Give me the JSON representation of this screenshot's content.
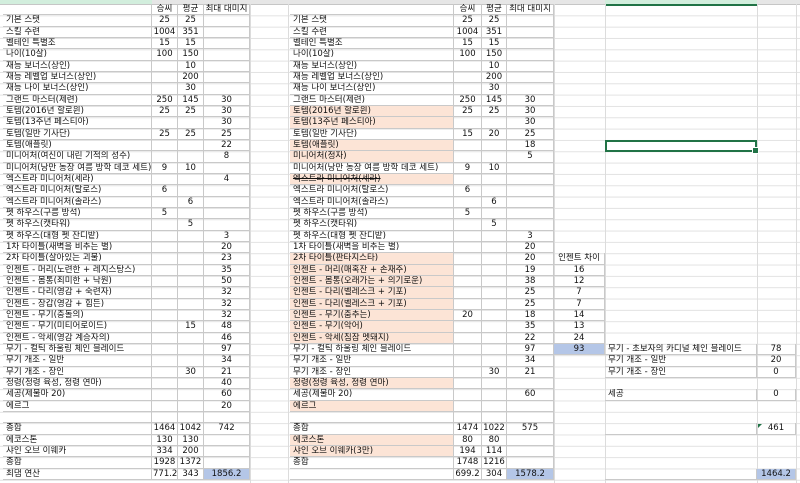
{
  "headers": {
    "win": "승씨",
    "avg": "평균",
    "max": "최대 대미지",
    "enchant_diff": "인젠트 차이"
  },
  "left_table": [
    {
      "label": "기본 스탯",
      "a": "25",
      "b": "25",
      "c": ""
    },
    {
      "label": "스킬 수련",
      "a": "1004",
      "b": "351",
      "c": ""
    },
    {
      "label": "벨테인 특별조",
      "a": "15",
      "b": "15",
      "c": ""
    },
    {
      "label": "나이(10살)",
      "a": "100",
      "b": "150",
      "c": ""
    },
    {
      "label": "재능 보너스(상인)",
      "a": "",
      "b": "10",
      "c": ""
    },
    {
      "label": "재능 레벨업 보너스(상인)",
      "a": "",
      "b": "200",
      "c": ""
    },
    {
      "label": "재능 나이 보너스(상인)",
      "a": "",
      "b": "30",
      "c": ""
    },
    {
      "label": "그랜드 마스터(제련)",
      "a": "250",
      "b": "145",
      "c": "30"
    },
    {
      "label": "토템(2016년 할로윈)",
      "a": "25",
      "b": "25",
      "c": "30"
    },
    {
      "label": "토템(13주년 페스티아)",
      "a": "",
      "b": "",
      "c": "30"
    },
    {
      "label": "토템(일반 기사단)",
      "a": "25",
      "b": "25",
      "c": "25"
    },
    {
      "label": "토템(애플릿)",
      "a": "",
      "b": "",
      "c": "22"
    },
    {
      "label": "미니어처(여신이 내린 기적의 성수)",
      "a": "",
      "b": "",
      "c": "8"
    },
    {
      "label": "미니어처(낭만 농장 여름 방학 데코 세트)",
      "a": "9",
      "b": "10",
      "c": ""
    },
    {
      "label": "엑스트라 미니어처(세라)",
      "a": "",
      "b": "",
      "c": "4"
    },
    {
      "label": "엑스트라 미니어처(탈로스)",
      "a": "6",
      "b": "",
      "c": ""
    },
    {
      "label": "엑스트라 미니어처(솔라스)",
      "a": "",
      "b": "6",
      "c": ""
    },
    {
      "label": "펫 하우스(구름 방석)",
      "a": "5",
      "b": "",
      "c": ""
    },
    {
      "label": "펫 하우스(캣타워)",
      "a": "",
      "b": "5",
      "c": ""
    },
    {
      "label": "펫 하우스(대형 펫 잔디밭)",
      "a": "",
      "b": "",
      "c": "3"
    },
    {
      "label": "1차 타이틀(새벽을 비추는 별)",
      "a": "",
      "b": "",
      "c": "20"
    },
    {
      "label": "2차 타이틀(살아있는 괴물)",
      "a": "",
      "b": "",
      "c": "23"
    },
    {
      "label": "인젠트 - 머리(노련한 + 레지스탕스)",
      "a": "",
      "b": "",
      "c": "35"
    },
    {
      "label": "인젠트 - 몸통(죄미한 + 낙원)",
      "a": "",
      "b": "",
      "c": "50"
    },
    {
      "label": "인젠트 - 다리(영감 + 숙련자)",
      "a": "",
      "b": "",
      "c": "32"
    },
    {
      "label": "인젠트 - 장갑(영감 + 힘든)",
      "a": "",
      "b": "",
      "c": "32"
    },
    {
      "label": "인젠트 - 무기(충돌의)",
      "a": "",
      "b": "",
      "c": "32"
    },
    {
      "label": "인젠트 - 무기(미티어로이드)",
      "a": "",
      "b": "15",
      "c": "48"
    },
    {
      "label": "인젠트 - 악세(영감 계승자의)",
      "a": "",
      "b": "",
      "c": "46"
    },
    {
      "label": "무기 - 컬틱 하울링 체인 블레이드",
      "a": "",
      "b": "",
      "c": "97"
    },
    {
      "label": "무기 개조 - 일반",
      "a": "",
      "b": "",
      "c": "34"
    },
    {
      "label": "무기 개조 - 장인",
      "a": "",
      "b": "30",
      "c": "21"
    },
    {
      "label": "정령(정령 육성, 정령 연마)",
      "a": "",
      "b": "",
      "c": "40"
    },
    {
      "label": "세공(제물마 20)",
      "a": "",
      "b": "",
      "c": "60"
    },
    {
      "label": "에르그",
      "a": "",
      "b": "",
      "c": "20"
    },
    {
      "label": "",
      "a": "",
      "b": "",
      "c": ""
    },
    {
      "label": "종합",
      "a": "1464",
      "b": "1042",
      "c": "742"
    },
    {
      "label": "에코스톤",
      "a": "130",
      "b": "130",
      "c": ""
    },
    {
      "label": "샤인 오브 이웨카",
      "a": "334",
      "b": "200",
      "c": ""
    },
    {
      "label": "종합",
      "a": "1928",
      "b": "1372",
      "c": ""
    },
    {
      "label": "최댐 연산",
      "a": "771.2",
      "b": "343",
      "c": "1856.2",
      "c_highlight": true
    }
  ],
  "right_table": [
    {
      "label": "기본 스탯",
      "a": "25",
      "b": "25",
      "c": "",
      "d": ""
    },
    {
      "label": "스킬 수련",
      "a": "1004",
      "b": "351",
      "c": "",
      "d": ""
    },
    {
      "label": "벨테인 특별조",
      "a": "15",
      "b": "15",
      "c": "",
      "d": ""
    },
    {
      "label": "나이(10살)",
      "a": "100",
      "b": "150",
      "c": "",
      "d": ""
    },
    {
      "label": "재능 보너스(상인)",
      "a": "",
      "b": "10",
      "c": "",
      "d": ""
    },
    {
      "label": "재능 레벨업 보너스(상인)",
      "a": "",
      "b": "200",
      "c": "",
      "d": ""
    },
    {
      "label": "재능 나이 보너스(상인)",
      "a": "",
      "b": "30",
      "c": "",
      "d": ""
    },
    {
      "label": "그랜드 마스터(제련)",
      "a": "250",
      "b": "145",
      "c": "30",
      "d": ""
    },
    {
      "label": "토템(2016년 할로윈)",
      "a": "25",
      "b": "25",
      "c": "30",
      "d": "",
      "highlight": true
    },
    {
      "label": "토템(13주년 페스티아)",
      "a": "",
      "b": "",
      "c": "30",
      "d": "",
      "highlight": true
    },
    {
      "label": "토템(일반 기사단)",
      "a": "15",
      "b": "20",
      "c": "25",
      "d": ""
    },
    {
      "label": "토템(애플릿)",
      "a": "",
      "b": "",
      "c": "18",
      "d": "",
      "highlight": true
    },
    {
      "label": "미니어처(정자)",
      "a": "",
      "b": "",
      "c": "5",
      "d": "",
      "highlight": true
    },
    {
      "label": "미니어처(낭만 농장 여름 방학 데코 세트)",
      "a": "9",
      "b": "10",
      "c": "",
      "d": ""
    },
    {
      "label": "엑스트라 미니어처(세라)",
      "a": "",
      "b": "",
      "c": "",
      "d": "",
      "highlight": true,
      "strike": true
    },
    {
      "label": "엑스트라 미니어처(탈로스)",
      "a": "6",
      "b": "",
      "c": "",
      "d": ""
    },
    {
      "label": "엑스트라 미니어처(솔라스)",
      "a": "",
      "b": "6",
      "c": "",
      "d": ""
    },
    {
      "label": "펫 하우스(구름 방석)",
      "a": "5",
      "b": "",
      "c": "",
      "d": ""
    },
    {
      "label": "펫 하우스(캣타워)",
      "a": "",
      "b": "5",
      "c": "",
      "d": ""
    },
    {
      "label": "펫 하우스(대형 펫 잔디밭)",
      "a": "",
      "b": "",
      "c": "3",
      "d": ""
    },
    {
      "label": "1차 타이틀(새벽을 비추는 별)",
      "a": "",
      "b": "",
      "c": "20",
      "d": ""
    },
    {
      "label": "2차 타이틀(판타지스타)",
      "a": "",
      "b": "",
      "c": "20",
      "d": "인젠트 차이",
      "highlight": true
    },
    {
      "label": "인젠트 - 머리(매혹잔 + 손재주)",
      "a": "",
      "b": "",
      "c": "19",
      "d": "16",
      "highlight": true
    },
    {
      "label": "인젠트 - 몸통(오래가는 + 의기로운)",
      "a": "",
      "b": "",
      "c": "38",
      "d": "12",
      "highlight": true
    },
    {
      "label": "인젠트 - 다리(벨레스크 + 기포)",
      "a": "",
      "b": "",
      "c": "25",
      "d": "7",
      "highlight": true
    },
    {
      "label": "인젠트 - 다리(벨레스크 + 기포)",
      "a": "",
      "b": "",
      "c": "25",
      "d": "7",
      "highlight": true
    },
    {
      "label": "인젠트 - 무기(춤추는)",
      "a": "20",
      "b": "",
      "c": "18",
      "d": "14",
      "highlight": true
    },
    {
      "label": "인젠트 - 무기(악어)",
      "a": "",
      "b": "",
      "c": "35",
      "d": "13",
      "highlight": true
    },
    {
      "label": "인젠트 - 악세(침잠 멧돼지)",
      "a": "",
      "b": "",
      "c": "22",
      "d": "24",
      "highlight": true
    },
    {
      "label": "무기 - 컬틱 하울링 체인 블레이드",
      "a": "",
      "b": "",
      "c": "97",
      "d": "93",
      "d_highlight": true
    },
    {
      "label": "무기 개조 - 일반",
      "a": "",
      "b": "",
      "c": "34",
      "d": ""
    },
    {
      "label": "무기 개조 - 장인",
      "a": "",
      "b": "30",
      "c": "21",
      "d": ""
    },
    {
      "label": "정령(정령 육성, 정령 연마)",
      "a": "",
      "b": "",
      "c": "",
      "d": "",
      "highlight": true
    },
    {
      "label": "세공(제물마 20)",
      "a": "",
      "b": "",
      "c": "60",
      "d": ""
    },
    {
      "label": "에르그",
      "a": "",
      "b": "",
      "c": "",
      "d": "",
      "highlight": true
    },
    {
      "label": "",
      "a": "",
      "b": "",
      "c": "",
      "d": ""
    },
    {
      "label": "종합",
      "a": "1474",
      "b": "1022",
      "c": "575",
      "d": ""
    },
    {
      "label": "에코스톤",
      "a": "80",
      "b": "80",
      "c": "",
      "d": "",
      "highlight": true
    },
    {
      "label": "샤인 오브 이웨카(3만)",
      "a": "194",
      "b": "114",
      "c": "",
      "d": "",
      "highlight": true
    },
    {
      "label": "종합",
      "a": "1748",
      "b": "1216",
      "c": "",
      "d": ""
    },
    {
      "label": "",
      "a": "699.2",
      "b": "304",
      "c": "1578.2",
      "d": "",
      "c_highlight": true
    }
  ],
  "side_table": {
    "rows": [
      {
        "row": 30,
        "label": "무기 - 초보자의 카디널 체인 블레이드",
        "value": "78"
      },
      {
        "row": 31,
        "label": "무기 개조 - 일반",
        "value": "20"
      },
      {
        "row": 32,
        "label": "무기 개조 - 장인",
        "value": "0"
      },
      {
        "row": 34,
        "label": "세공",
        "value": "0"
      },
      {
        "row": 37,
        "label": "",
        "value": "461"
      },
      {
        "row": 41,
        "label": "",
        "value": "1464.2",
        "highlight": true
      }
    ]
  },
  "colors": {
    "highlight_peach": "#fce4d6",
    "highlight_blue": "#b4c6e7",
    "selection_green": "#217346"
  }
}
